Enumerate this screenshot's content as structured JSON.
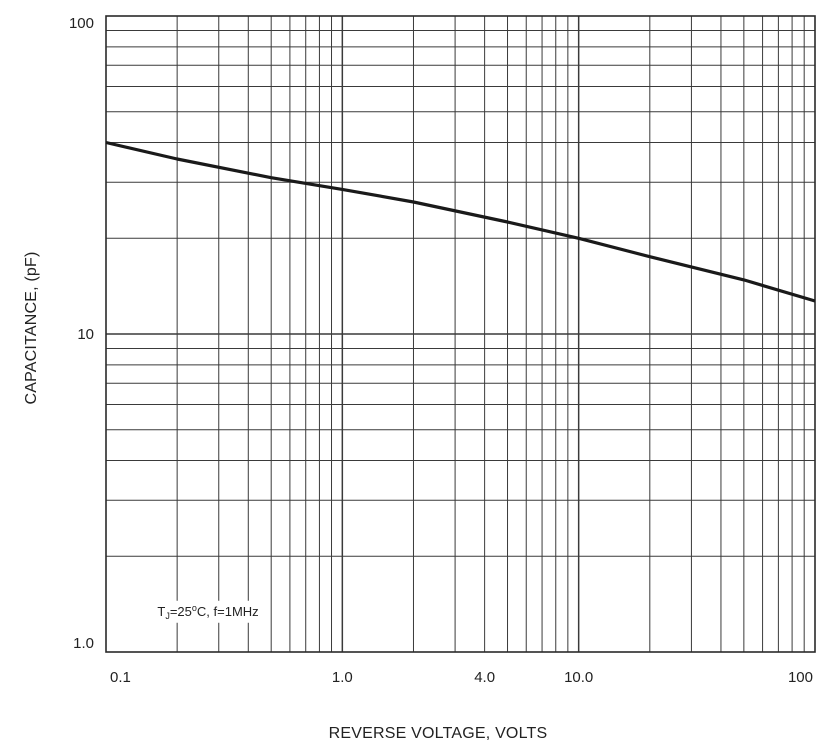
{
  "chart_data": {
    "type": "line",
    "xscale": "log",
    "yscale": "log",
    "xlim": [
      0.1,
      100
    ],
    "ylim": [
      1,
      100
    ],
    "xlabel": "REVERSE VOLTAGE, VOLTS",
    "ylabel": "CAPACITANCE, (pF)",
    "xticks": [
      {
        "value": 0.1,
        "label": "0.1"
      },
      {
        "value": 1,
        "label": "1.0"
      },
      {
        "value": 4,
        "label": "4.0"
      },
      {
        "value": 10,
        "label": "10.0"
      },
      {
        "value": 100,
        "label": "100"
      }
    ],
    "yticks": [
      {
        "value": 1,
        "label": "1.0"
      },
      {
        "value": 10,
        "label": "10"
      },
      {
        "value": 100,
        "label": "100"
      }
    ],
    "annotation": {
      "prefix": "T",
      "subscript": "J",
      "mid": "=25",
      "superscript": "o",
      "suffix": "C, f=1MHz",
      "x": 0.165,
      "y": 1.3
    },
    "grid": true,
    "line_color": "#1a1a1a",
    "grid_color": "#3a3a3a",
    "series": [
      {
        "x": [
          0.1,
          0.2,
          0.5,
          1,
          2,
          5,
          10,
          20,
          50,
          100
        ],
        "y": [
          40,
          35.5,
          31,
          28.5,
          26,
          22.5,
          20,
          17.5,
          14.8,
          12.7
        ]
      }
    ]
  }
}
